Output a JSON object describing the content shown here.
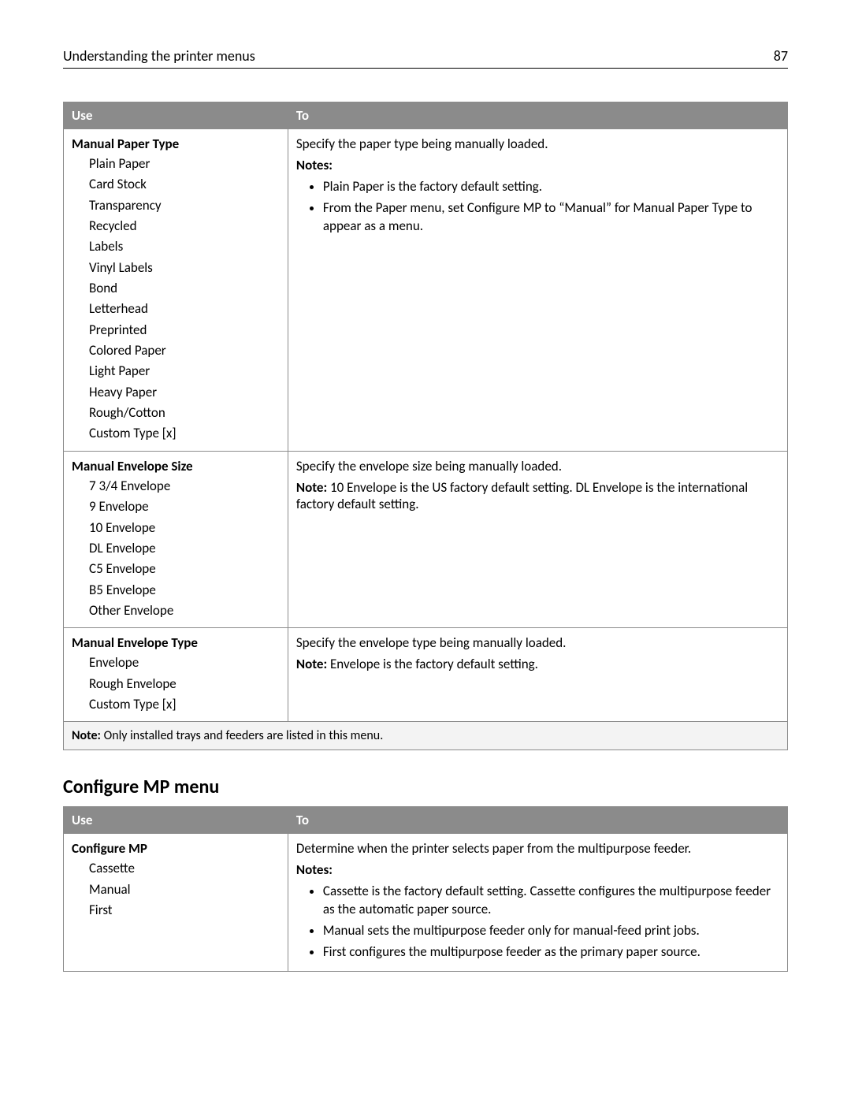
{
  "header": {
    "title": "Understanding the printer menus",
    "page_number": "87"
  },
  "table1": {
    "head": {
      "use": "Use",
      "to": "To"
    },
    "rows": [
      {
        "use_title": "Manual Paper Type",
        "options": [
          "Plain Paper",
          "Card Stock",
          "Transparency",
          "Recycled",
          "Labels",
          "Vinyl Labels",
          "Bond",
          "Letterhead",
          "Preprinted",
          "Colored Paper",
          "Light Paper",
          "Heavy Paper",
          "Rough/Cotton",
          "Custom Type [x]"
        ],
        "to_lead": "Specify the paper type being manually loaded.",
        "notes_label": "Notes:",
        "bullets": [
          "Plain Paper is the factory default setting.",
          "From the Paper menu, set Configure MP to “Manual” for Manual Paper Type to appear as a menu."
        ]
      },
      {
        "use_title": "Manual Envelope Size",
        "options": [
          "7 3/4 Envelope",
          "9 Envelope",
          "10 Envelope",
          "DL Envelope",
          "C5 Envelope",
          "B5 Envelope",
          "Other Envelope"
        ],
        "to_lead": "Specify the envelope size being manually loaded.",
        "note_label": "Note:",
        "note_text": "10 Envelope is the US factory default setting. DL Envelope is the international factory default setting."
      },
      {
        "use_title": "Manual Envelope Type",
        "options": [
          "Envelope",
          "Rough Envelope",
          "Custom Type [x]"
        ],
        "to_lead": "Specify the envelope type being manually loaded.",
        "note_label": "Note:",
        "note_text": "Envelope is the factory default setting."
      }
    ],
    "footnote_label": "Note:",
    "footnote_text": "Only installed trays and feeders are listed in this menu."
  },
  "section2_title": "Configure MP menu",
  "table2": {
    "head": {
      "use": "Use",
      "to": "To"
    },
    "row": {
      "use_title": "Configure MP",
      "options": [
        "Cassette",
        "Manual",
        "First"
      ],
      "to_lead": "Determine when the printer selects paper from the multipurpose feeder.",
      "notes_label": "Notes:",
      "bullets": [
        "Cassette is the factory default setting. Cassette configures the multipurpose feeder as the automatic paper source.",
        "Manual sets the multipurpose feeder only for manual-feed print jobs.",
        "First configures the multipurpose feeder as the primary paper source."
      ]
    }
  }
}
